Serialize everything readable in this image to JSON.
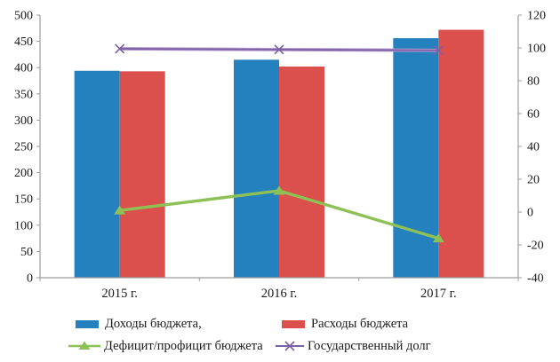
{
  "chart_data": {
    "type": "combo-bar-line",
    "categories": [
      "2015 г.",
      "2016 г.",
      "2017 г."
    ],
    "series": [
      {
        "name": "Доходы бюджета,",
        "type": "bar",
        "axis": "left",
        "color": "#2580BE",
        "values": [
          394,
          415,
          456
        ]
      },
      {
        "name": "Расходы бюджета",
        "type": "bar",
        "axis": "left",
        "color": "#DB504D",
        "values": [
          393,
          402,
          472
        ]
      },
      {
        "name": "Дефицит/профицит бюджета",
        "type": "line",
        "marker": "triangle",
        "axis": "right",
        "color": "#8DC155",
        "values": [
          1,
          13,
          -16
        ]
      },
      {
        "name": "Государственный долг",
        "type": "line",
        "marker": "x",
        "axis": "right",
        "color": "#7D5FA6",
        "halo": "#B29BCD",
        "values": [
          99.5,
          99,
          98.5
        ]
      }
    ],
    "left_axis": {
      "min": 0,
      "max": 500,
      "tick_labels": [
        "500",
        "450",
        "400",
        "350",
        "300",
        "250",
        "200",
        "150",
        "100",
        "50",
        "0"
      ]
    },
    "right_axis": {
      "min": -40,
      "max": 120,
      "tick_labels": [
        "120",
        "100",
        "80",
        "60",
        "40",
        "20",
        "0",
        "-20",
        "-40"
      ]
    },
    "grid": false,
    "legend_position": "bottom",
    "axis_color": "#9D9D9D",
    "text_color": "#1A1A1A"
  }
}
